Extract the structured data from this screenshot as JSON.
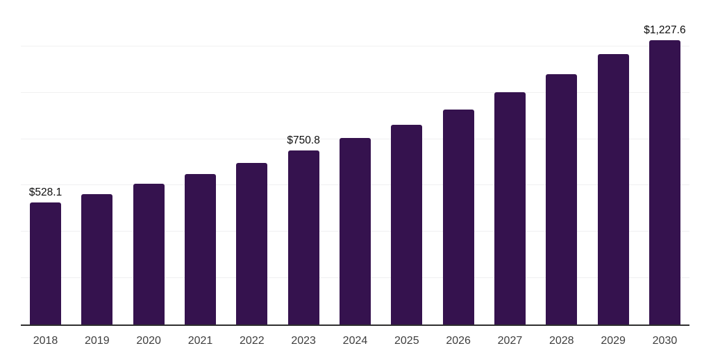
{
  "chart_data": {
    "type": "bar",
    "title": "",
    "xlabel": "",
    "ylabel": "",
    "categories": [
      "2018",
      "2019",
      "2020",
      "2021",
      "2022",
      "2023",
      "2024",
      "2025",
      "2026",
      "2027",
      "2028",
      "2029",
      "2030"
    ],
    "values": [
      528.1,
      564,
      606,
      650,
      698,
      750.8,
      806,
      862,
      928,
      1002,
      1079,
      1166,
      1227.6
    ],
    "data_labels": [
      "$528.1",
      "",
      "",
      "",
      "",
      "$750.8",
      "",
      "",
      "",
      "",
      "",
      "",
      "$1,227.6"
    ],
    "ylim": [
      0,
      1400
    ],
    "grid_step": 200,
    "grid": "horizontal-only",
    "y_tick_labels_visible": false,
    "legend": "none",
    "colors": {
      "bar": "#35124E",
      "gridline": "#f0f0f1",
      "axis_line": "#2e2e2e",
      "value_label_text": "#0c0c0c",
      "x_tick_text": "#3e3e3e",
      "background": "#ffffff"
    }
  }
}
